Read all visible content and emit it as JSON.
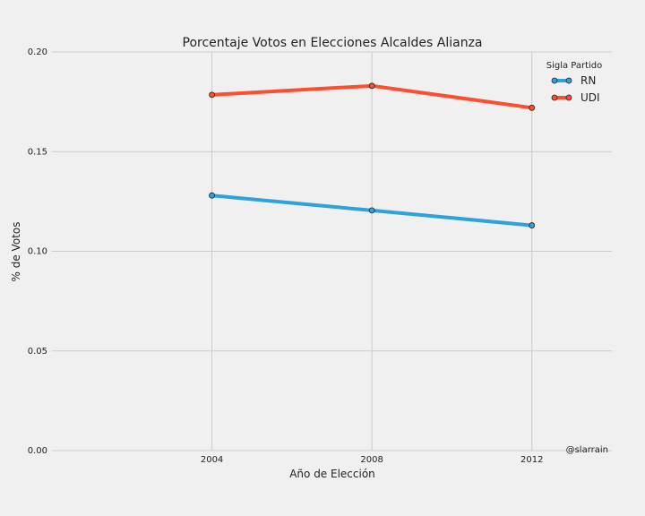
{
  "chart_data": {
    "type": "line",
    "title": "Porcentaje Votos en Elecciones Alcaldes Alianza",
    "xlabel": "Año de Elección",
    "ylabel": "% de Votos",
    "x": [
      2004,
      2008,
      2012
    ],
    "x_tick_labels": [
      "2004",
      "2008",
      "2012"
    ],
    "xlim": [
      2000,
      2014
    ],
    "ylim": [
      0,
      0.2
    ],
    "y_ticks": [
      0.0,
      0.05,
      0.1,
      0.15,
      0.2
    ],
    "y_tick_labels": [
      "0.00",
      "0.05",
      "0.10",
      "0.15",
      "0.20"
    ],
    "grid": true,
    "legend_title": "Sigla Partido",
    "legend_position": "top-right",
    "series": [
      {
        "name": "RN",
        "color": "#30a2da",
        "values": [
          0.128,
          0.1205,
          0.113
        ]
      },
      {
        "name": "UDI",
        "color": "#fc4f30",
        "values": [
          0.1785,
          0.183,
          0.172
        ]
      }
    ],
    "annotation": "@slarrain"
  }
}
